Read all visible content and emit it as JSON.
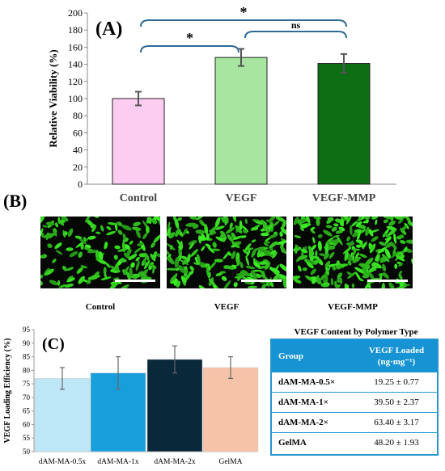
{
  "chart_data": [
    {
      "panel": "(A)",
      "type": "bar",
      "ylabel": "Relative Viability (%)",
      "ylim": [
        0,
        200
      ],
      "yticks": [
        0,
        20,
        40,
        60,
        80,
        100,
        120,
        140,
        160,
        180,
        200
      ],
      "categories": [
        "Control",
        "VEGF",
        "VEGF-MMP"
      ],
      "values": [
        100,
        148,
        141
      ],
      "errors": [
        8,
        10,
        11
      ],
      "colors": [
        "#fccdf0",
        "#a7e5a0",
        "#0d6e13"
      ],
      "significance": [
        {
          "from": 0,
          "to": 1,
          "label": "*"
        },
        {
          "from": 1,
          "to": 2,
          "label": "ns"
        },
        {
          "from": 0,
          "to": 2,
          "label": "*"
        }
      ]
    },
    {
      "panel": "(C)",
      "type": "bar",
      "ylabel": "VEGF Loading Efficiency (%)",
      "ylim": [
        50,
        95
      ],
      "yticks": [
        50,
        55,
        60,
        65,
        70,
        75,
        80,
        85,
        90,
        95
      ],
      "categories": [
        "dAM-MA-0.5x",
        "dAM-MA-1x",
        "dAM-MA-2x",
        "GelMA"
      ],
      "values": [
        77,
        79,
        84,
        81
      ],
      "errors": [
        4,
        6,
        5,
        4
      ],
      "colors": [
        "#bde6f7",
        "#179fdc",
        "#092839",
        "#f6c3a9"
      ]
    }
  ],
  "panel_b": {
    "label": "(B)",
    "images": [
      "Control",
      "VEGF",
      "VEGF-MMP"
    ]
  },
  "table": {
    "title": "VEGF Content by Polymer Type",
    "header": {
      "group": "Group",
      "loaded_line1": "VEGF Loaded",
      "loaded_line2": "(ng·mg⁻¹)"
    },
    "rows": [
      {
        "group": "dAM-MA-0.5×",
        "value": "19.25 ± 0.77"
      },
      {
        "group": "dAM-MA-1×",
        "value": "39.50 ± 2.37"
      },
      {
        "group": "dAM-MA-2×",
        "value": "63.40 ± 3.17"
      },
      {
        "group": "GelMA",
        "value": "48.20 ± 1.93"
      }
    ]
  }
}
